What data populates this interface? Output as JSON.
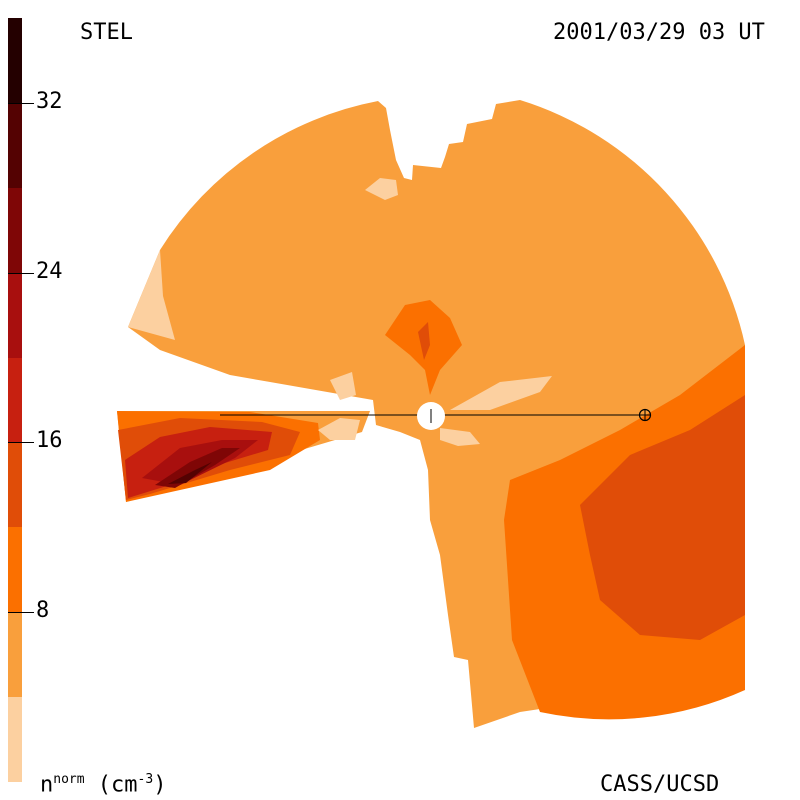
{
  "header": {
    "left_title": "STEL",
    "right_title": "2001/03/29 03 UT"
  },
  "footer": {
    "unit_base": "n",
    "unit_sup": "norm",
    "unit_rest": " (cm",
    "unit_exp": "-3",
    "unit_close": ")",
    "credit": "CASS/UCSD"
  },
  "colorbar": {
    "tick_labels": [
      "32",
      "24",
      "16",
      "8"
    ],
    "tick_values": [
      32,
      24,
      16,
      8
    ],
    "range": [
      0,
      36
    ],
    "levels": [
      {
        "from": 0,
        "to": 4,
        "color": "#fcd0a0"
      },
      {
        "from": 4,
        "to": 8,
        "color": "#f99f3c"
      },
      {
        "from": 8,
        "to": 12,
        "color": "#fb7000"
      },
      {
        "from": 12,
        "to": 16,
        "color": "#e04d08"
      },
      {
        "from": 16,
        "to": 20,
        "color": "#c72010"
      },
      {
        "from": 20,
        "to": 24,
        "color": "#a80f0e"
      },
      {
        "from": 24,
        "to": 28,
        "color": "#7f0606"
      },
      {
        "from": 28,
        "to": 32,
        "color": "#540202"
      },
      {
        "from": 32,
        "to": 36,
        "color": "#240000"
      }
    ]
  },
  "symbols": {
    "sun": "sun-marker",
    "earth": "earth-marker-circled-plus"
  }
}
